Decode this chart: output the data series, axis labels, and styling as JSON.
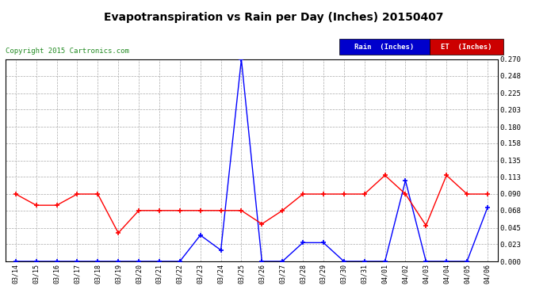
{
  "title": "Evapotranspiration vs Rain per Day (Inches) 20150407",
  "copyright": "Copyright 2015 Cartronics.com",
  "background_color": "#ffffff",
  "grid_color": "#aaaaaa",
  "x_labels": [
    "03/14",
    "03/15",
    "03/16",
    "03/17",
    "03/18",
    "03/19",
    "03/20",
    "03/21",
    "03/22",
    "03/23",
    "03/24",
    "03/25",
    "03/26",
    "03/27",
    "03/28",
    "03/29",
    "03/30",
    "03/31",
    "04/01",
    "04/02",
    "04/03",
    "04/04",
    "04/05",
    "04/06"
  ],
  "rain_values": [
    0.0,
    0.0,
    0.0,
    0.0,
    0.0,
    0.0,
    0.0,
    0.0,
    0.0,
    0.035,
    0.015,
    0.27,
    0.0,
    0.0,
    0.025,
    0.025,
    0.0,
    0.0,
    0.0,
    0.108,
    0.0,
    0.0,
    0.0,
    0.072
  ],
  "et_values": [
    0.09,
    0.075,
    0.075,
    0.09,
    0.09,
    0.038,
    0.068,
    0.068,
    0.068,
    0.068,
    0.068,
    0.068,
    0.05,
    0.068,
    0.09,
    0.09,
    0.09,
    0.09,
    0.115,
    0.09,
    0.048,
    0.115,
    0.09,
    0.09
  ],
  "rain_color": "#0000ff",
  "et_color": "#ff0000",
  "ylim": [
    0.0,
    0.27
  ],
  "yticks": [
    0.0,
    0.023,
    0.045,
    0.068,
    0.09,
    0.113,
    0.135,
    0.158,
    0.18,
    0.203,
    0.225,
    0.248,
    0.27
  ],
  "legend_rain_bg": "#0000cc",
  "legend_et_bg": "#cc0000",
  "legend_rain_text": "Rain  (Inches)",
  "legend_et_text": "ET  (Inches)"
}
